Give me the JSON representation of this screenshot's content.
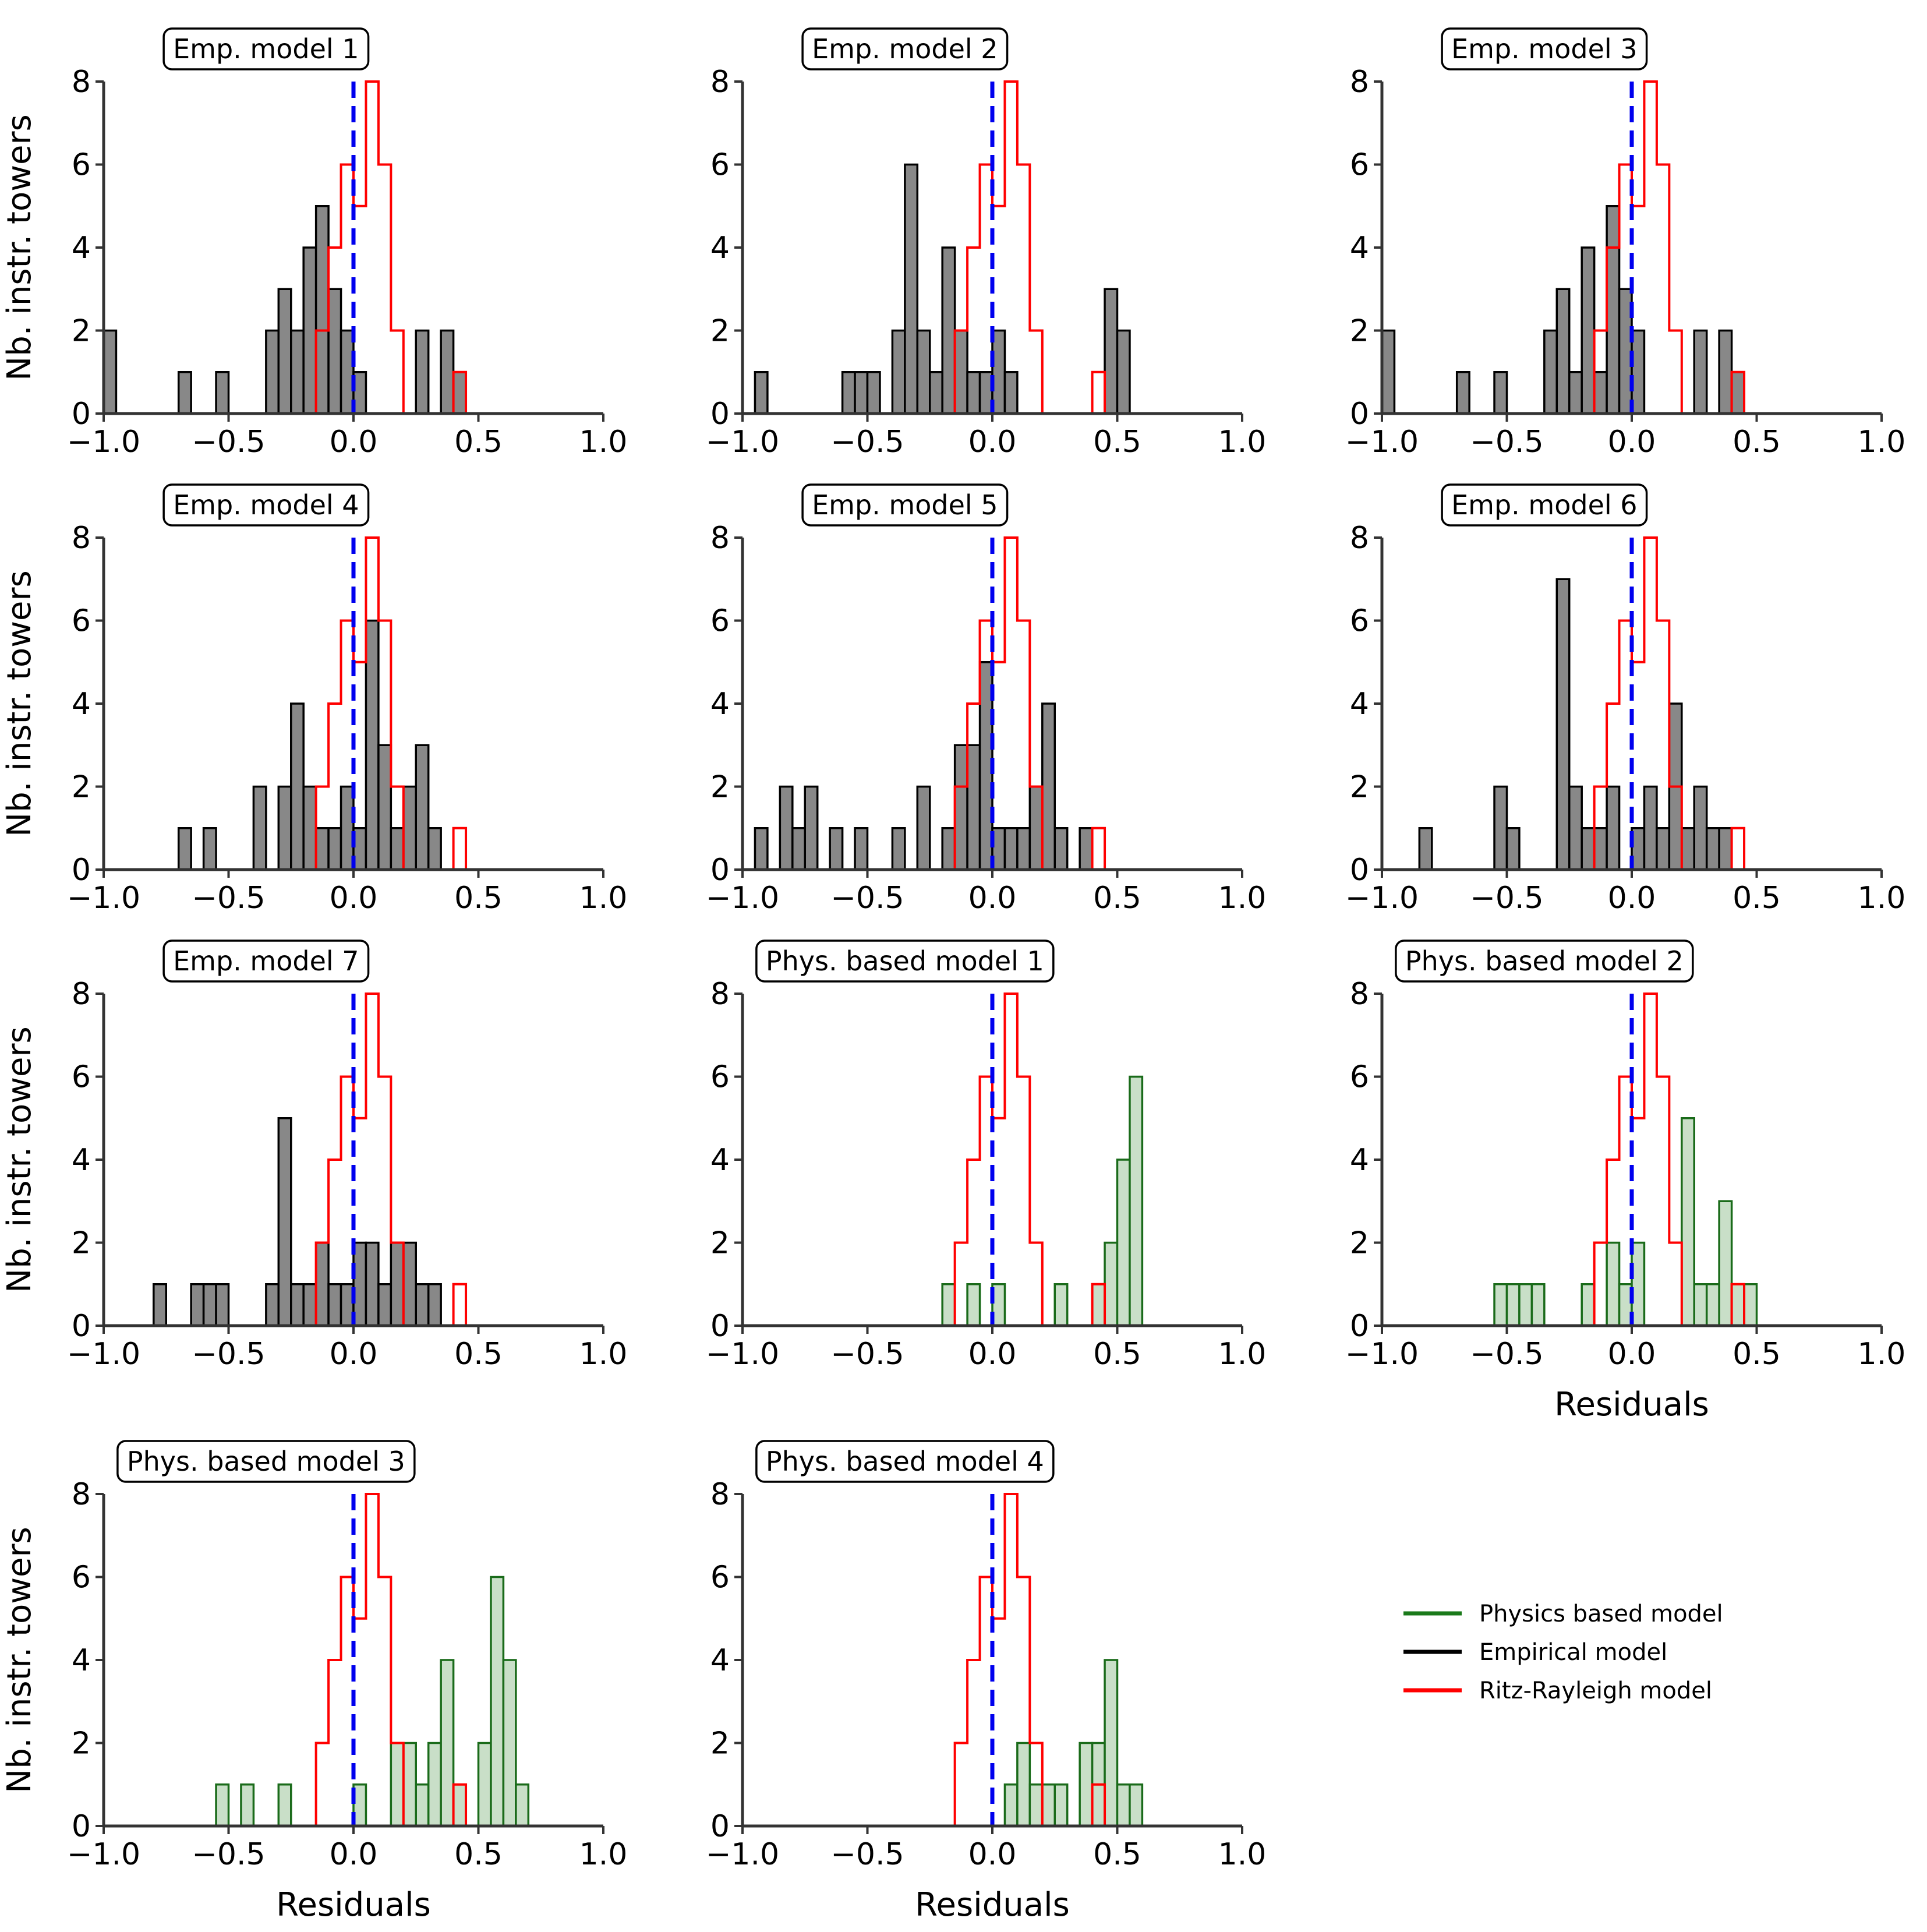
{
  "chart_data": {
    "type": "histogram-grid",
    "xlim": [
      -1.0,
      1.0
    ],
    "ylim": [
      0,
      8
    ],
    "x_ticks": [
      "−1.0",
      "−0.5",
      "0.0",
      "0.5",
      "1.0"
    ],
    "y_ticks": [
      "0",
      "2",
      "4",
      "6",
      "8"
    ],
    "ylabel": "Nb. instr. towers",
    "xlabel": "Residuals",
    "bin_width": 0.05,
    "colors": {
      "empirical_fill": "#888888",
      "empirical_edge": "#000000",
      "physics_fill": "#c9dfc8",
      "physics_edge": "#1a6b1a",
      "ritz_edge": "#ff0000",
      "reference_line": "#0000ee",
      "axis": "#333333"
    },
    "ritz_rayleigh": {
      "bins_start": -0.15,
      "counts": [
        2,
        4,
        6,
        5,
        8,
        6,
        2,
        0,
        0,
        0,
        0,
        1
      ]
    },
    "legend": [
      {
        "label": "Physics based model",
        "color": "#1a7a1a"
      },
      {
        "label": "Empirical model",
        "color": "#000000"
      },
      {
        "label": "Ritz-Rayleigh model",
        "color": "#ff0000"
      }
    ],
    "panels": [
      {
        "title": "Emp. model 1",
        "kind": "empirical",
        "bins_start": -1.0,
        "counts": [
          2,
          0,
          0,
          0,
          0,
          0,
          1,
          0,
          0,
          1,
          0,
          0,
          0,
          2,
          3,
          2,
          4,
          5,
          3,
          2,
          1,
          0,
          0,
          0,
          0,
          2,
          0,
          2,
          1,
          0,
          0,
          0,
          0,
          0,
          0,
          0,
          0,
          0,
          0,
          0
        ]
      },
      {
        "title": "Emp. model 2",
        "kind": "empirical",
        "bins_start": -1.0,
        "counts": [
          0,
          1,
          0,
          0,
          0,
          0,
          0,
          0,
          1,
          1,
          1,
          0,
          2,
          6,
          2,
          1,
          4,
          2,
          1,
          1,
          2,
          1,
          0,
          0,
          0,
          0,
          0,
          0,
          0,
          3,
          2,
          0,
          0,
          0,
          0,
          0,
          0,
          0,
          0,
          0
        ]
      },
      {
        "title": "Emp. model 3",
        "kind": "empirical",
        "bins_start": -1.0,
        "counts": [
          2,
          0,
          0,
          0,
          0,
          0,
          1,
          0,
          0,
          1,
          0,
          0,
          0,
          2,
          3,
          1,
          4,
          1,
          5,
          3,
          2,
          0,
          0,
          0,
          0,
          2,
          0,
          2,
          1,
          0,
          0,
          0,
          0,
          0,
          0,
          0,
          0,
          0,
          0,
          0
        ]
      },
      {
        "title": "Emp. model 4",
        "kind": "empirical",
        "bins_start": -1.0,
        "counts": [
          0,
          0,
          0,
          0,
          0,
          0,
          1,
          0,
          1,
          0,
          0,
          0,
          2,
          0,
          2,
          4,
          2,
          1,
          1,
          2,
          1,
          6,
          3,
          1,
          2,
          3,
          1,
          0,
          0,
          0,
          0,
          0,
          0,
          0,
          0,
          0,
          0,
          0,
          0,
          0
        ]
      },
      {
        "title": "Emp. model 5",
        "kind": "empirical",
        "bins_start": -1.0,
        "counts": [
          0,
          1,
          0,
          2,
          1,
          2,
          0,
          1,
          0,
          1,
          0,
          0,
          1,
          0,
          2,
          0,
          1,
          3,
          3,
          5,
          1,
          1,
          1,
          2,
          4,
          1,
          0,
          1,
          0,
          0,
          0,
          0,
          0,
          0,
          0,
          0,
          0,
          0,
          0,
          0
        ]
      },
      {
        "title": "Emp. model 6",
        "kind": "empirical",
        "bins_start": -1.0,
        "counts": [
          0,
          0,
          0,
          1,
          0,
          0,
          0,
          0,
          0,
          2,
          1,
          0,
          0,
          0,
          7,
          2,
          1,
          1,
          2,
          0,
          1,
          2,
          1,
          4,
          1,
          2,
          1,
          1,
          0,
          0,
          0,
          0,
          0,
          0,
          0,
          0,
          0,
          0,
          0,
          0
        ]
      },
      {
        "title": "Emp. model 7",
        "kind": "empirical",
        "bins_start": -1.0,
        "counts": [
          0,
          0,
          0,
          0,
          1,
          0,
          0,
          1,
          1,
          1,
          0,
          0,
          0,
          1,
          5,
          1,
          1,
          2,
          1,
          1,
          2,
          2,
          1,
          2,
          2,
          1,
          1,
          0,
          0,
          0,
          0,
          0,
          0,
          0,
          0,
          0,
          0,
          0,
          0,
          0
        ]
      },
      {
        "title": "Phys. based model 1",
        "kind": "physics",
        "bins_start": -1.0,
        "counts": [
          0,
          0,
          0,
          0,
          0,
          0,
          0,
          0,
          0,
          0,
          0,
          0,
          0,
          0,
          0,
          0,
          1,
          0,
          1,
          0,
          1,
          0,
          0,
          0,
          0,
          1,
          0,
          0,
          1,
          2,
          4,
          6,
          0,
          0,
          0,
          0,
          0,
          0,
          0,
          0
        ]
      },
      {
        "title": "Phys. based model 2",
        "kind": "physics",
        "bins_start": -1.0,
        "counts": [
          0,
          0,
          0,
          0,
          0,
          0,
          0,
          0,
          0,
          1,
          1,
          1,
          1,
          0,
          0,
          0,
          1,
          0,
          2,
          1,
          2,
          0,
          0,
          0,
          5,
          1,
          1,
          3,
          1,
          1,
          0,
          0,
          0,
          0,
          0,
          0,
          0,
          0,
          0,
          0
        ]
      },
      {
        "title": "Phys. based model 3",
        "kind": "physics",
        "bins_start": -1.0,
        "counts": [
          0,
          0,
          0,
          0,
          0,
          0,
          0,
          0,
          0,
          1,
          0,
          1,
          0,
          0,
          1,
          0,
          0,
          0,
          0,
          0,
          1,
          0,
          0,
          2,
          2,
          1,
          2,
          4,
          1,
          0,
          2,
          6,
          4,
          1,
          0,
          0,
          0,
          0,
          0,
          0
        ]
      },
      {
        "title": "Phys. based model 4",
        "kind": "physics",
        "bins_start": -1.0,
        "counts": [
          0,
          0,
          0,
          0,
          0,
          0,
          0,
          0,
          0,
          0,
          0,
          0,
          0,
          0,
          0,
          0,
          0,
          0,
          0,
          0,
          0,
          1,
          2,
          1,
          1,
          1,
          0,
          2,
          2,
          4,
          1,
          1,
          0,
          0,
          0,
          0,
          0,
          0,
          0,
          0
        ]
      }
    ]
  }
}
